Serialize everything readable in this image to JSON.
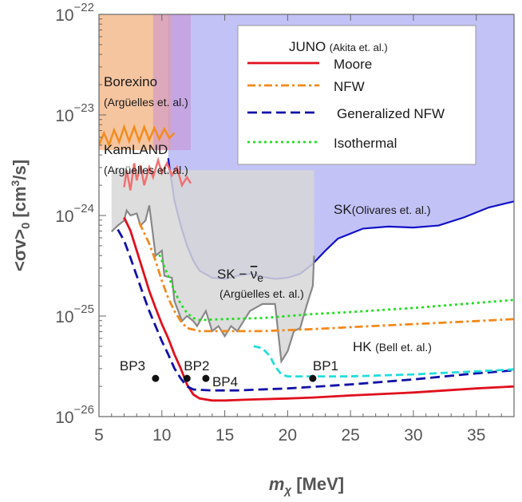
{
  "chart_data": {
    "type": "line",
    "xlabel": "m_χ [MeV]",
    "ylabel": "<σv>_0 [cm^3/s]",
    "xlim": [
      5,
      38
    ],
    "ylim_log10": [
      -26,
      -22
    ],
    "x_ticks": [
      5,
      10,
      15,
      20,
      25,
      30,
      35
    ],
    "y_ticks": [
      {
        "exp": -22,
        "label_base": "10",
        "label_exp": "−22"
      },
      {
        "exp": -23,
        "label_base": "10",
        "label_exp": "−23"
      },
      {
        "exp": -24,
        "label_base": "10",
        "label_exp": "−24"
      },
      {
        "exp": -25,
        "label_base": "10",
        "label_exp": "−25"
      },
      {
        "exp": -26,
        "label_base": "10",
        "label_exp": "−26"
      }
    ],
    "legend": {
      "title": "JUNO",
      "title_cite": "(Akita et. al.)",
      "location": "top-right",
      "entries": [
        {
          "label": "Moore",
          "series": "moore"
        },
        {
          "label": "NFW",
          "series": "nfw"
        },
        {
          "label": "Generalized NFW",
          "series": "gnfw"
        },
        {
          "label": "Isothermal",
          "series": "iso"
        }
      ]
    },
    "series": [
      {
        "key": "moore",
        "name": "Moore",
        "color": "#e0101e",
        "dash": "",
        "points": [
          [
            7.0,
            -24.02
          ],
          [
            7.5,
            -24.15
          ],
          [
            8,
            -24.35
          ],
          [
            8.5,
            -24.55
          ],
          [
            9,
            -24.75
          ],
          [
            9.5,
            -24.92
          ],
          [
            10,
            -25.08
          ],
          [
            10.5,
            -25.22
          ],
          [
            11,
            -25.38
          ],
          [
            11.5,
            -25.52
          ],
          [
            12,
            -25.68
          ],
          [
            12.5,
            -25.78
          ],
          [
            13,
            -25.82
          ],
          [
            14,
            -25.84
          ],
          [
            15,
            -25.84
          ],
          [
            17,
            -25.83
          ],
          [
            20,
            -25.82
          ],
          [
            22,
            -25.81
          ],
          [
            25,
            -25.79
          ],
          [
            30,
            -25.76
          ],
          [
            35,
            -25.72
          ],
          [
            38,
            -25.7
          ]
        ]
      },
      {
        "key": "nfw",
        "name": "NFW",
        "color": "#f2891b",
        "dash": "10,4,3,4",
        "points": [
          [
            8.2,
            -24.07
          ],
          [
            8.5,
            -24.15
          ],
          [
            9,
            -24.28
          ],
          [
            9.5,
            -24.45
          ],
          [
            10,
            -24.65
          ],
          [
            10.5,
            -24.82
          ],
          [
            11,
            -24.95
          ],
          [
            11.5,
            -25.05
          ],
          [
            12,
            -25.12
          ],
          [
            13,
            -25.15
          ],
          [
            15,
            -25.15
          ],
          [
            18,
            -25.15
          ],
          [
            20,
            -25.14
          ],
          [
            22,
            -25.13
          ],
          [
            25,
            -25.11
          ],
          [
            30,
            -25.08
          ],
          [
            35,
            -25.05
          ],
          [
            38,
            -25.03
          ]
        ]
      },
      {
        "key": "gnfw",
        "name": "Generalized NFW",
        "color": "#1010a8",
        "dash": "12,6",
        "points": [
          [
            6.5,
            -24.14
          ],
          [
            7,
            -24.25
          ],
          [
            7.5,
            -24.42
          ],
          [
            8,
            -24.6
          ],
          [
            8.5,
            -24.78
          ],
          [
            9,
            -24.95
          ],
          [
            9.5,
            -25.1
          ],
          [
            10,
            -25.25
          ],
          [
            10.5,
            -25.38
          ],
          [
            11,
            -25.52
          ],
          [
            11.5,
            -25.62
          ],
          [
            12,
            -25.7
          ],
          [
            12.5,
            -25.73
          ],
          [
            14,
            -25.74
          ],
          [
            16,
            -25.74
          ],
          [
            20,
            -25.72
          ],
          [
            25,
            -25.68
          ],
          [
            30,
            -25.63
          ],
          [
            35,
            -25.57
          ],
          [
            38,
            -25.54
          ]
        ]
      },
      {
        "key": "iso",
        "name": "Isothermal",
        "color": "#22dd22",
        "dash": "3,4",
        "points": [
          [
            9.8,
            -24.39
          ],
          [
            10,
            -24.45
          ],
          [
            10.5,
            -24.6
          ],
          [
            11,
            -24.75
          ],
          [
            11.5,
            -24.88
          ],
          [
            12,
            -24.97
          ],
          [
            12.5,
            -25.02
          ],
          [
            13,
            -25.04
          ],
          [
            15,
            -25.03
          ],
          [
            18,
            -25.02
          ],
          [
            20,
            -25.0
          ],
          [
            22,
            -24.98
          ],
          [
            25,
            -24.96
          ],
          [
            30,
            -24.92
          ],
          [
            35,
            -24.87
          ],
          [
            38,
            -24.84
          ]
        ]
      },
      {
        "key": "hk",
        "name": "HK",
        "color": "#22dddd",
        "dash": "9,5",
        "points": [
          [
            17.3,
            -25.3
          ],
          [
            18,
            -25.32
          ],
          [
            18.6,
            -25.4
          ],
          [
            19,
            -25.5
          ],
          [
            19.5,
            -25.58
          ],
          [
            20,
            -25.6
          ],
          [
            22,
            -25.6
          ],
          [
            25,
            -25.6
          ],
          [
            30,
            -25.58
          ],
          [
            35,
            -25.55
          ],
          [
            38,
            -25.53
          ]
        ]
      }
    ],
    "regions": [
      {
        "key": "sk",
        "name": "SK",
        "fill": "#8f8fee",
        "fill_opacity": 0.55,
        "stroke": "#1010c8",
        "boundary": [
          [
            10.5,
            -23.43
          ],
          [
            10.7,
            -23.6
          ],
          [
            11,
            -23.85
          ],
          [
            11.5,
            -24.1
          ],
          [
            12,
            -24.3
          ],
          [
            12.5,
            -24.45
          ],
          [
            13,
            -24.55
          ],
          [
            14,
            -24.62
          ],
          [
            15,
            -24.63
          ],
          [
            16,
            -24.6
          ],
          [
            17,
            -24.58
          ],
          [
            18,
            -24.61
          ],
          [
            19,
            -24.63
          ],
          [
            20,
            -24.62
          ],
          [
            21,
            -24.58
          ],
          [
            22,
            -24.48
          ],
          [
            23,
            -24.35
          ],
          [
            24,
            -24.23
          ],
          [
            26,
            -24.13
          ],
          [
            28,
            -24.11
          ],
          [
            30,
            -24.12
          ],
          [
            32,
            -24.1
          ],
          [
            34,
            -24.02
          ],
          [
            36,
            -23.92
          ],
          [
            38,
            -23.86
          ]
        ]
      },
      {
        "key": "borexino",
        "name": "Borexino",
        "fill": "#f2b180",
        "fill_opacity": 0.75,
        "x_range": [
          5,
          10.7
        ],
        "top": -22
      },
      {
        "key": "kamland",
        "name": "KamLAND",
        "fill": "#c890d2",
        "fill_opacity": 0.55,
        "x_range": [
          9.3,
          12.3
        ],
        "top": -22
      },
      {
        "key": "sknu",
        "name": "SK-νe",
        "fill": "#d7d7d7",
        "fill_opacity": 0.85,
        "stroke": "#888888",
        "boundary": [
          [
            6,
            -24.16
          ],
          [
            6.5,
            -24.1
          ],
          [
            7,
            -24.05
          ],
          [
            7.2,
            -23.95
          ],
          [
            7.5,
            -24.0
          ],
          [
            8,
            -23.98
          ],
          [
            8.3,
            -24.1
          ],
          [
            8.7,
            -24.05
          ],
          [
            9,
            -23.9
          ],
          [
            9.2,
            -24.1
          ],
          [
            9.5,
            -24.4
          ],
          [
            10,
            -24.35
          ],
          [
            10.2,
            -24.6
          ],
          [
            10.8,
            -24.62
          ],
          [
            11,
            -24.85
          ],
          [
            11.3,
            -24.95
          ],
          [
            11.6,
            -25.05
          ],
          [
            12,
            -25.0
          ],
          [
            12.5,
            -25.05
          ],
          [
            12.8,
            -25.1
          ],
          [
            13.5,
            -24.95
          ],
          [
            14,
            -25.15
          ],
          [
            14.5,
            -25.1
          ],
          [
            15,
            -25.2
          ],
          [
            15.5,
            -25.1
          ],
          [
            16,
            -25.15
          ],
          [
            16.5,
            -25.05
          ],
          [
            17,
            -24.95
          ],
          [
            18,
            -24.88
          ],
          [
            19,
            -24.88
          ],
          [
            19.5,
            -25.45
          ],
          [
            20,
            -25.35
          ],
          [
            20.5,
            -25.15
          ],
          [
            21,
            -25.12
          ],
          [
            21.5,
            -24.9
          ],
          [
            22,
            -24.7
          ],
          [
            22.1,
            -24.4
          ]
        ]
      }
    ],
    "laced_curves": [
      {
        "key": "borexino_edge",
        "color": "#f28c1e",
        "points": [
          [
            5,
            -23.3
          ],
          [
            5.4,
            -23.18
          ],
          [
            5.8,
            -23.3
          ],
          [
            6.2,
            -23.15
          ],
          [
            6.6,
            -23.27
          ],
          [
            7,
            -23.12
          ],
          [
            7.4,
            -23.26
          ],
          [
            7.8,
            -23.12
          ],
          [
            8.2,
            -23.26
          ],
          [
            8.6,
            -23.12
          ],
          [
            9,
            -23.25
          ],
          [
            9.4,
            -23.13
          ],
          [
            9.8,
            -23.24
          ],
          [
            10.2,
            -23.14
          ],
          [
            10.6,
            -23.23
          ],
          [
            11,
            -23.18
          ]
        ]
      },
      {
        "key": "kamland_edge",
        "color": "#f07070",
        "points": [
          [
            7,
            -23.72
          ],
          [
            7.2,
            -23.55
          ],
          [
            7.5,
            -23.75
          ],
          [
            7.8,
            -23.48
          ],
          [
            8,
            -23.65
          ],
          [
            8.3,
            -23.5
          ],
          [
            8.6,
            -23.7
          ],
          [
            9,
            -23.52
          ],
          [
            9.3,
            -23.62
          ],
          [
            9.7,
            -23.45
          ],
          [
            10,
            -23.58
          ],
          [
            10.4,
            -23.48
          ],
          [
            10.8,
            -23.6
          ],
          [
            11.2,
            -23.52
          ],
          [
            11.6,
            -23.7
          ],
          [
            12,
            -23.62
          ],
          [
            12.3,
            -23.68
          ]
        ]
      }
    ],
    "annotations": [
      {
        "key": "borexino",
        "text": "Borexino",
        "cite": "(Argüelles et. al.)"
      },
      {
        "key": "kamland",
        "text": "KamLAND",
        "cite": "(Argüelles et. al.)"
      },
      {
        "key": "sk",
        "text": "SK",
        "cite": "(Olivares et. al.)"
      },
      {
        "key": "sknu",
        "text": "SK −",
        "nu": "ν",
        "nu_sub": "e",
        "cite": "(Argüelles et. al.)"
      },
      {
        "key": "hk",
        "text": "HK",
        "cite": "(Bell et. al.)"
      }
    ],
    "benchmarks": [
      {
        "label": "BP1",
        "x": 22,
        "log10y": -25.62
      },
      {
        "label": "BP2",
        "x": 12,
        "log10y": -25.62
      },
      {
        "label": "BP3",
        "x": 9.5,
        "log10y": -25.62
      },
      {
        "label": "BP4",
        "x": 13.5,
        "log10y": -25.62
      }
    ]
  }
}
